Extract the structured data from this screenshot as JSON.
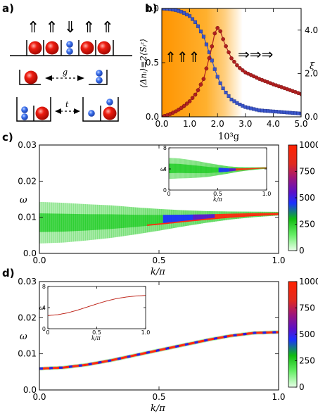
{
  "panels": {
    "a": {
      "label": "a)",
      "spin_arrows": "⇑⇑⇓⇑⇑",
      "g_label": "g",
      "t_label": "t"
    },
    "b": {
      "label": "b)",
      "left_arrows": "⇑⇑⇑",
      "right_arrows": "⇒⇒⇒"
    },
    "c": {
      "label": "c)"
    },
    "d": {
      "label": "d)"
    }
  },
  "colors": {
    "series_blue": "#3a55c8",
    "series_red": "#b02020",
    "shade_orange": "#ffa21a",
    "spectral_green": "#22cc22",
    "spectral_blue": "#1a1aff",
    "spectral_red": "#ff2200"
  },
  "chart_data": [
    {
      "id": "b",
      "type": "line",
      "xlabel": "10³g",
      "ylabel": "⟨Δnᵢ⟩≡2⟨Sᵢᶻ⟩",
      "ylabel_right": "ξ",
      "xlim": [
        0,
        5
      ],
      "ylim": [
        0,
        1
      ],
      "ylim_right": [
        0,
        5
      ],
      "xticks": [
        "0.0",
        "1.0",
        "2.0",
        "3.0",
        "4.0",
        "5.0"
      ],
      "yticks": [
        "0.0",
        "0.5",
        "1.0"
      ],
      "yticks_right": [
        "0.0",
        "2.0",
        "4.0"
      ],
      "shaded_region": [
        0,
        2.0
      ],
      "series": [
        {
          "axis": "left",
          "color": "blue",
          "x": [
            0.0,
            0.25,
            0.5,
            0.75,
            1.0,
            1.25,
            1.5,
            1.75,
            1.9,
            2.0,
            2.1,
            2.25,
            2.5,
            2.75,
            3.0,
            3.5,
            4.0,
            4.5,
            5.0
          ],
          "values": [
            1.0,
            0.995,
            0.985,
            0.965,
            0.93,
            0.86,
            0.74,
            0.56,
            0.44,
            0.37,
            0.31,
            0.24,
            0.16,
            0.12,
            0.09,
            0.06,
            0.05,
            0.04,
            0.03
          ]
        },
        {
          "axis": "right",
          "color": "red",
          "x": [
            0.0,
            0.25,
            0.5,
            0.75,
            1.0,
            1.25,
            1.5,
            1.75,
            1.9,
            2.0,
            2.1,
            2.25,
            2.5,
            2.75,
            3.0,
            3.5,
            4.0,
            4.5,
            5.0
          ],
          "values": [
            0.0,
            0.1,
            0.25,
            0.45,
            0.72,
            1.1,
            1.75,
            2.95,
            3.85,
            4.1,
            3.95,
            3.4,
            2.7,
            2.3,
            2.05,
            1.75,
            1.5,
            1.28,
            1.05
          ]
        }
      ]
    },
    {
      "id": "c",
      "type": "heatmap",
      "xlabel": "k/π",
      "ylabel": "ω",
      "xlim": [
        0,
        1
      ],
      "ylim": [
        0,
        0.03
      ],
      "xticks": [
        "0.0",
        "0.5",
        "1.0"
      ],
      "yticks": [
        "0.0",
        "0.01",
        "0.02",
        "0.03"
      ],
      "colorbar": {
        "range": [
          0,
          1000
        ],
        "ticks": [
          "0",
          "250",
          "500",
          "750",
          "1000"
        ]
      },
      "band": {
        "k": [
          0.0,
          0.1,
          0.2,
          0.3,
          0.4,
          0.5,
          0.6,
          0.7,
          0.8,
          0.9,
          1.0
        ],
        "center": [
          0.0085,
          0.0085,
          0.0086,
          0.0088,
          0.009,
          0.0093,
          0.0097,
          0.0101,
          0.0105,
          0.0108,
          0.011
        ],
        "width": [
          0.0115,
          0.011,
          0.01,
          0.009,
          0.0075,
          0.006,
          0.0045,
          0.0032,
          0.0022,
          0.0015,
          0.001
        ]
      },
      "inset": {
        "xlabel": "k/π",
        "ylabel": "ω",
        "xlim": [
          0,
          1
        ],
        "ylim": [
          0,
          8
        ],
        "xticks": [
          "0",
          "0.5",
          "1.0"
        ],
        "yticks": [
          "0",
          "4",
          "8"
        ],
        "band": {
          "k": [
            0.0,
            0.1,
            0.2,
            0.3,
            0.4,
            0.5,
            0.6,
            0.7,
            0.8,
            0.9,
            1.0
          ],
          "center": [
            4.1,
            4.1,
            4.0,
            3.9,
            3.8,
            3.8,
            3.8,
            3.9,
            4.0,
            4.1,
            4.2
          ],
          "width": [
            4.0,
            3.8,
            3.5,
            3.1,
            2.6,
            2.0,
            1.4,
            0.9,
            0.6,
            0.4,
            0.3
          ]
        }
      }
    },
    {
      "id": "d",
      "type": "heatmap",
      "xlabel": "k/π",
      "ylabel": "ω",
      "xlim": [
        0,
        1
      ],
      "ylim": [
        0,
        0.03
      ],
      "xticks": [
        "0.0",
        "0.5",
        "1.0"
      ],
      "yticks": [
        "0.0",
        "0.01",
        "0.02",
        "0.03"
      ],
      "colorbar": {
        "range": [
          0,
          1000
        ],
        "ticks": [
          "0",
          "250",
          "500",
          "750",
          "1000"
        ]
      },
      "curve": {
        "k": [
          0.0,
          0.1,
          0.2,
          0.3,
          0.4,
          0.5,
          0.6,
          0.7,
          0.8,
          0.9,
          1.0
        ],
        "omega": [
          0.0059,
          0.0062,
          0.007,
          0.0082,
          0.0096,
          0.011,
          0.0124,
          0.0138,
          0.015,
          0.0158,
          0.016
        ]
      },
      "inset": {
        "xlabel": "k/π",
        "ylabel": "ω",
        "xlim": [
          0,
          1
        ],
        "ylim": [
          0,
          8
        ],
        "xticks": [
          "0",
          "0.5",
          "1.0"
        ],
        "yticks": [
          "0",
          "4",
          "8"
        ],
        "curve": {
          "k": [
            0.0,
            0.1,
            0.2,
            0.3,
            0.4,
            0.5,
            0.6,
            0.7,
            0.8,
            0.9,
            1.0
          ],
          "omega": [
            2.5,
            2.65,
            3.0,
            3.5,
            4.1,
            4.7,
            5.25,
            5.7,
            6.0,
            6.2,
            6.3
          ]
        }
      }
    }
  ]
}
